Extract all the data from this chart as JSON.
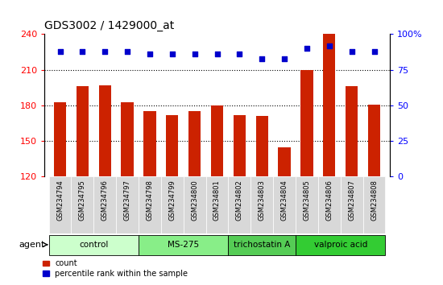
{
  "title": "GDS3002 / 1429000_at",
  "samples": [
    "GSM234794",
    "GSM234795",
    "GSM234796",
    "GSM234797",
    "GSM234798",
    "GSM234799",
    "GSM234800",
    "GSM234801",
    "GSM234802",
    "GSM234803",
    "GSM234804",
    "GSM234805",
    "GSM234806",
    "GSM234807",
    "GSM234808"
  ],
  "bar_values": [
    183,
    196,
    197,
    183,
    175,
    172,
    175,
    180,
    172,
    171,
    145,
    210,
    240,
    196,
    181
  ],
  "percentile_values": [
    88,
    88,
    88,
    88,
    86,
    86,
    86,
    86,
    86,
    83,
    83,
    90,
    92,
    88,
    88
  ],
  "bar_color": "#cc2200",
  "dot_color": "#0000cc",
  "ylim_left": [
    120,
    240
  ],
  "ylim_right": [
    0,
    100
  ],
  "yticks_left": [
    120,
    150,
    180,
    210,
    240
  ],
  "yticks_right": [
    0,
    25,
    50,
    75,
    100
  ],
  "groups": [
    {
      "label": "control",
      "start": 0,
      "end": 3,
      "color": "#ccffcc"
    },
    {
      "label": "MS-275",
      "start": 4,
      "end": 7,
      "color": "#88ee88"
    },
    {
      "label": "trichostatin A",
      "start": 8,
      "end": 10,
      "color": "#55cc55"
    },
    {
      "label": "valproic acid",
      "start": 11,
      "end": 14,
      "color": "#33cc33"
    }
  ],
  "bar_width": 0.55,
  "dotted_lines": [
    150,
    180,
    210
  ],
  "legend_items": [
    {
      "label": "count",
      "color": "#cc2200"
    },
    {
      "label": "percentile rank within the sample",
      "color": "#0000cc"
    }
  ]
}
